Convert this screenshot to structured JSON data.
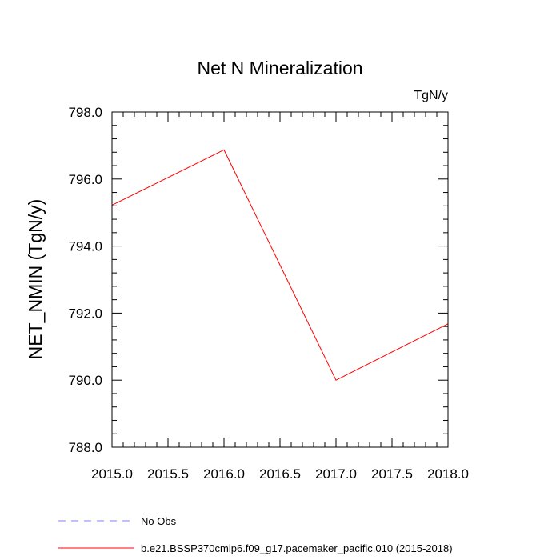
{
  "chart_data": {
    "type": "line",
    "title": "Net N Mineralization",
    "units_label": "TgN/y",
    "ylabel": "NET_NMIN  (TgN/y)",
    "xlabel": "",
    "xlim": [
      2015.0,
      2018.0
    ],
    "ylim": [
      788.0,
      798.0
    ],
    "x_ticks": [
      2015.0,
      2015.5,
      2016.0,
      2016.5,
      2017.0,
      2017.5,
      2018.0
    ],
    "x_tick_labels": [
      "2015.0",
      "2015.5",
      "2016.0",
      "2016.5",
      "2017.0",
      "2017.5",
      "2018.0"
    ],
    "y_ticks": [
      788.0,
      790.0,
      792.0,
      794.0,
      796.0,
      798.0
    ],
    "y_tick_labels": [
      "788.0",
      "790.0",
      "792.0",
      "794.0",
      "796.0",
      "798.0"
    ],
    "x_minor_step": 0.1,
    "y_minor_step": 0.4,
    "grid": false,
    "series": [
      {
        "name": "b.e21.BSSP370cmip6.f09_g17.pacemaker_pacific.010 (2015-2018)",
        "color": "#ff0000",
        "dash": "solid",
        "x": [
          2015.0,
          2016.0,
          2017.0,
          2018.0
        ],
        "values": [
          795.22,
          796.87,
          790.0,
          791.68
        ]
      }
    ],
    "legend": [
      {
        "label": "No Obs",
        "color": "#8080ff",
        "dash": "dashed"
      },
      {
        "label": "b.e21.BSSP370cmip6.f09_g17.pacemaker_pacific.010 (2015-2018)",
        "color": "#ff0000",
        "dash": "solid"
      }
    ],
    "legend_position": "bottom-left"
  }
}
